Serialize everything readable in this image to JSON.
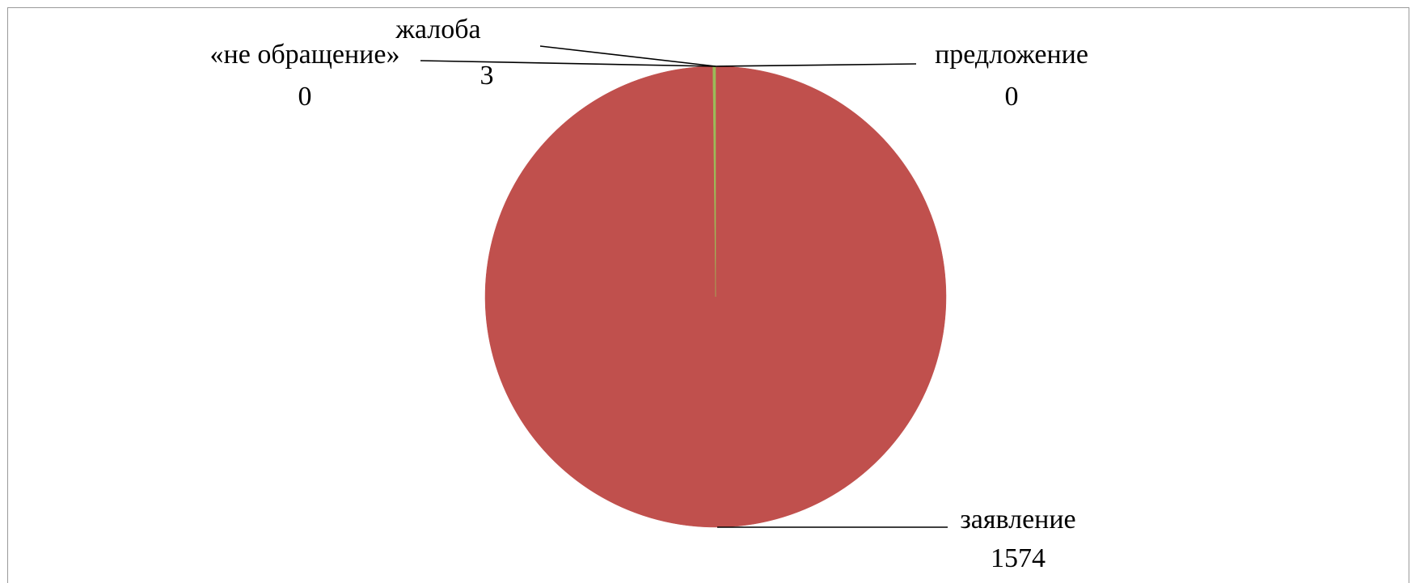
{
  "chart_data": {
    "type": "pie",
    "slices": [
      {
        "name": "заявление",
        "value": 1574,
        "display": "1574",
        "color": "#C0504D"
      },
      {
        "name": "жалоба",
        "value": 3,
        "display": "3",
        "color": "#9BBB59"
      },
      {
        "name": "предложение",
        "value": 0,
        "display": "0",
        "color": "#8064A2"
      },
      {
        "name": "«не обращение»",
        "value": 0,
        "display": "0",
        "color": "#4BACC6"
      }
    ]
  }
}
